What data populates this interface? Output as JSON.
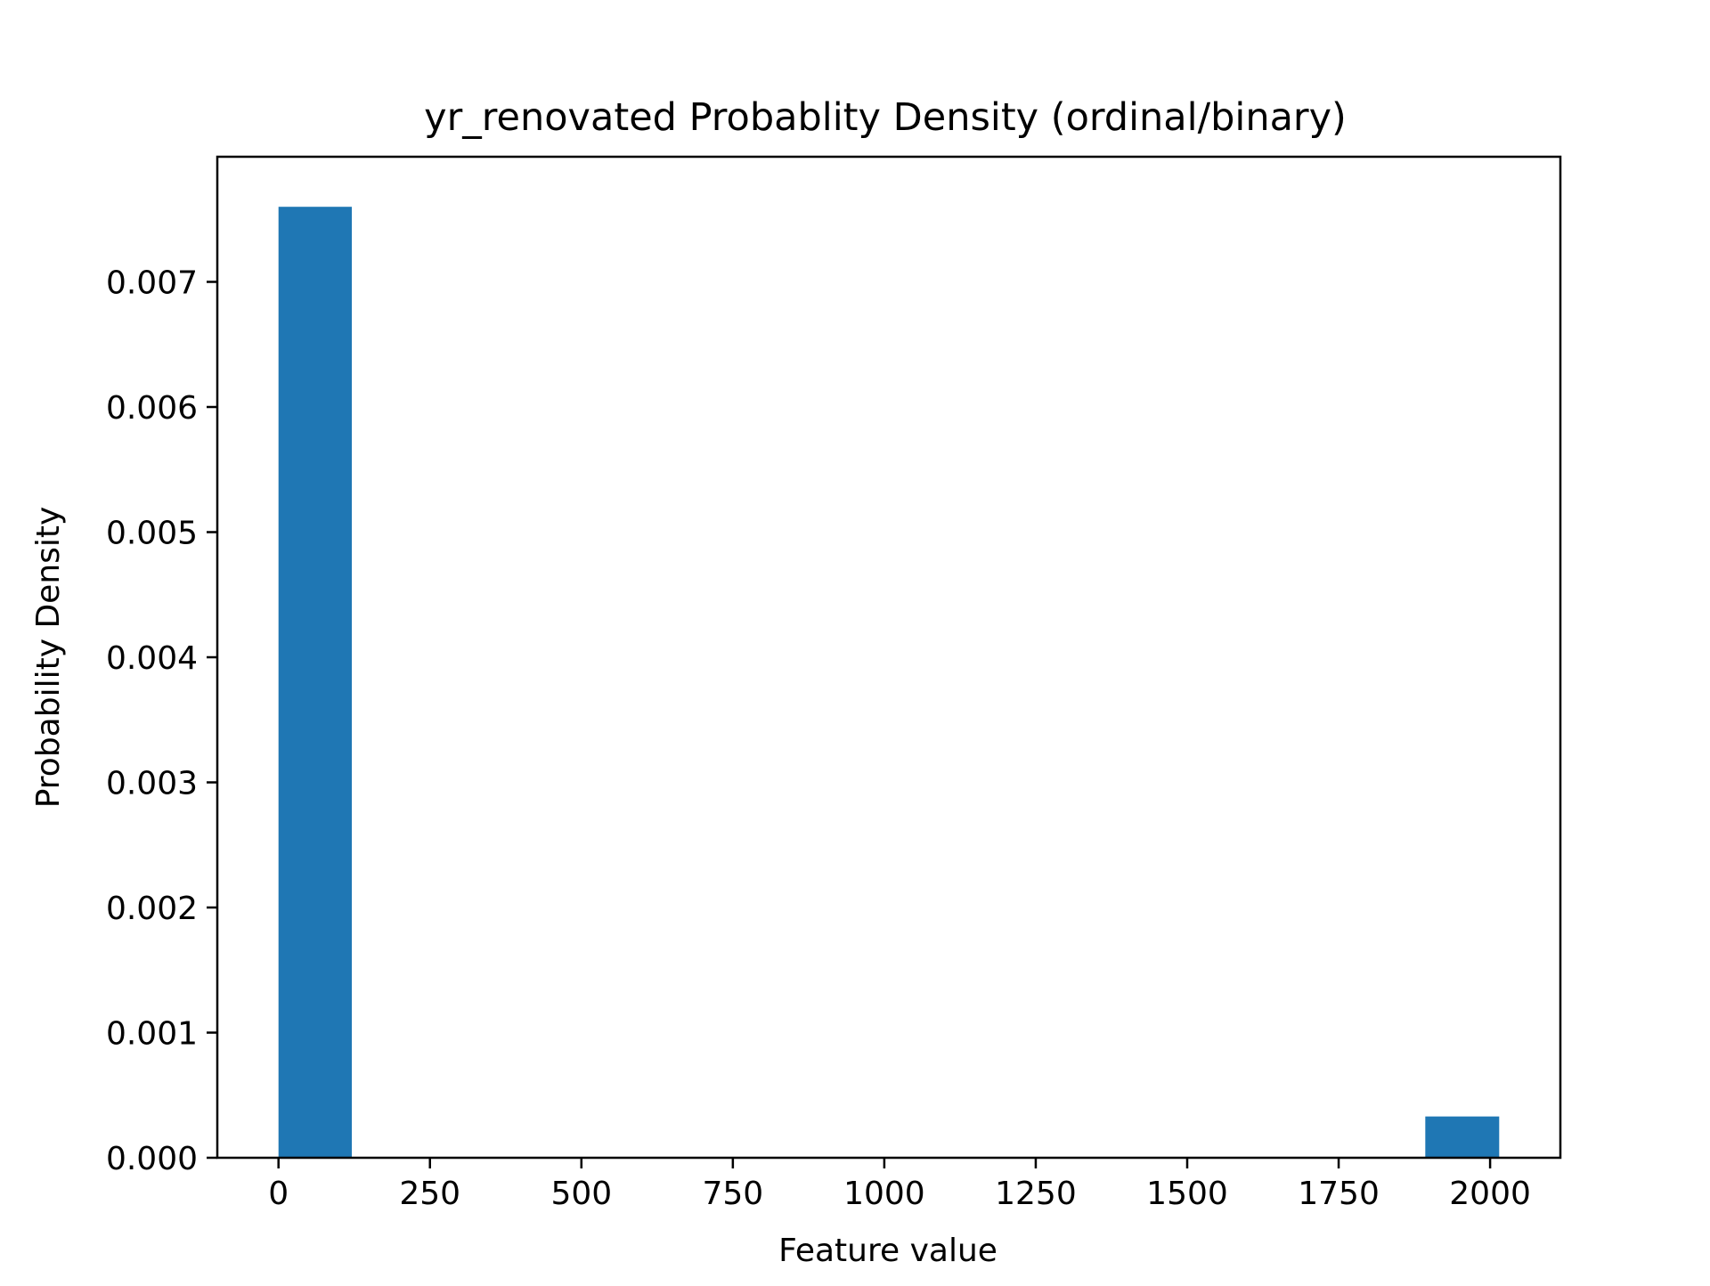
{
  "chart_data": {
    "type": "bar",
    "title": "yr_renovated Probablity Density (ordinal/binary)",
    "xlabel": "Feature value",
    "ylabel": "Probability Density",
    "xlim": [
      -101,
      2116
    ],
    "ylim": [
      0,
      0.008
    ],
    "xticks": [
      0,
      250,
      500,
      750,
      1000,
      1250,
      1500,
      1750,
      2000
    ],
    "xtick_labels": [
      "0",
      "250",
      "500",
      "750",
      "1000",
      "1250",
      "1500",
      "1750",
      "2000"
    ],
    "yticks": [
      0,
      0.001,
      0.002,
      0.003,
      0.004,
      0.005,
      0.006,
      0.007
    ],
    "ytick_labels": [
      "0.000",
      "0.001",
      "0.002",
      "0.003",
      "0.004",
      "0.005",
      "0.006",
      "0.007"
    ],
    "grid": false,
    "bars": [
      {
        "x0": 0,
        "x1": 121,
        "value": 0.0076
      },
      {
        "x0": 1893,
        "x1": 2015,
        "value": 0.00033
      }
    ],
    "colors": {
      "bar": "#1f77b4",
      "axis": "#000000"
    }
  }
}
